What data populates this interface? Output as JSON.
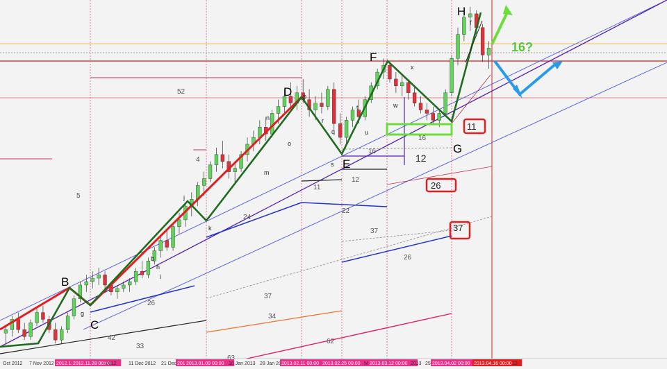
{
  "colors": {
    "background": "#f3f3f3",
    "bull_candle": "#5fd45a",
    "bear_candle": "#e0303a",
    "wave_red": "#e02020",
    "wave_green": "#1f6b1f",
    "channel_blue": "#4a55e0",
    "channel_purple": "#5522aa",
    "support_blue": "#2233cc",
    "highlight_box": "#e02020",
    "green_arrow": "#6ddc3c",
    "blue_arrow": "#2b9be8",
    "date_tag_bg": "#e8308a",
    "last_date_tag_bg": "#e02020"
  },
  "x_axis_labels": [
    {
      "text": "Oct 2012",
      "highlight": false
    },
    {
      "text": "7 Nov 2012",
      "highlight": false
    },
    {
      "text": "2012.11",
      "highlight": true
    },
    {
      "text": "2012.11.28 00:00",
      "highlight": true
    },
    {
      "text": "2012",
      "highlight": false
    },
    {
      "text": "11 Dec 2012",
      "highlight": false
    },
    {
      "text": "21 Dec",
      "highlight": false
    },
    {
      "text": "2013.01",
      "highlight": true
    },
    {
      "text": "2013.01.09 00:00",
      "highlight": true
    },
    {
      "text": "16 Jan 2013",
      "highlight": false
    },
    {
      "text": "28 Jan 20",
      "highlight": false
    },
    {
      "text": "2013.02.11 00:00",
      "highlight": true
    },
    {
      "text": "2013.02.25 00:00",
      "highlight": true
    },
    {
      "text": "M",
      "highlight": false
    },
    {
      "text": "2013.03.12 00:00",
      "highlight": true
    },
    {
      "text": "2013",
      "highlight": false
    },
    {
      "text": "25",
      "highlight": false
    },
    {
      "text": "2013.04.02 00:00",
      "highlight": true
    },
    {
      "text": "2013.04.16 00:00",
      "highlight": true
    },
    {
      "text": "13",
      "highlight": false
    }
  ],
  "wave_labels": [
    "B",
    "C",
    "D",
    "E",
    "F",
    "G",
    "H"
  ],
  "sub_labels": [
    "g",
    "b",
    "h",
    "i",
    "j",
    "k",
    "m",
    "n",
    "o",
    "p",
    "q",
    "r",
    "s",
    "t",
    "u",
    "w",
    "x",
    "f"
  ],
  "count_labels": [
    "52",
    "4",
    "5",
    "24",
    "26",
    "42",
    "33",
    "37",
    "34",
    "62",
    "63",
    "11",
    "12",
    "22",
    "16",
    "16",
    "12",
    "37",
    "26",
    "26",
    "37",
    "11"
  ],
  "boxed_labels": [
    "11",
    "26",
    "37"
  ],
  "projection_label": "16?",
  "chart_data": {
    "type": "candlestick",
    "title": "",
    "grid": true,
    "ohlc": [
      [
        0.05,
        0.07,
        0.02,
        0.06
      ],
      [
        0.06,
        0.1,
        0.04,
        0.09
      ],
      [
        0.09,
        0.11,
        0.05,
        0.06
      ],
      [
        0.06,
        0.08,
        0.03,
        0.04
      ],
      [
        0.04,
        0.09,
        0.03,
        0.08
      ],
      [
        0.08,
        0.12,
        0.07,
        0.11
      ],
      [
        0.11,
        0.13,
        0.08,
        0.09
      ],
      [
        0.09,
        0.1,
        0.05,
        0.06
      ],
      [
        0.06,
        0.08,
        0.02,
        0.03
      ],
      [
        0.03,
        0.07,
        0.02,
        0.06
      ],
      [
        0.06,
        0.11,
        0.05,
        0.1
      ],
      [
        0.1,
        0.16,
        0.09,
        0.15
      ],
      [
        0.15,
        0.2,
        0.14,
        0.19
      ],
      [
        0.19,
        0.22,
        0.17,
        0.2
      ],
      [
        0.2,
        0.23,
        0.18,
        0.21
      ],
      [
        0.21,
        0.24,
        0.19,
        0.22
      ],
      [
        0.22,
        0.23,
        0.18,
        0.19
      ],
      [
        0.19,
        0.2,
        0.16,
        0.17
      ],
      [
        0.17,
        0.19,
        0.15,
        0.18
      ],
      [
        0.18,
        0.2,
        0.17,
        0.19
      ],
      [
        0.19,
        0.21,
        0.17,
        0.2
      ],
      [
        0.2,
        0.24,
        0.19,
        0.23
      ],
      [
        0.23,
        0.26,
        0.21,
        0.22
      ],
      [
        0.22,
        0.27,
        0.21,
        0.26
      ],
      [
        0.26,
        0.3,
        0.25,
        0.29
      ],
      [
        0.29,
        0.33,
        0.27,
        0.32
      ],
      [
        0.32,
        0.35,
        0.29,
        0.3
      ],
      [
        0.3,
        0.37,
        0.29,
        0.36
      ],
      [
        0.36,
        0.4,
        0.34,
        0.38
      ],
      [
        0.38,
        0.43,
        0.36,
        0.42
      ],
      [
        0.42,
        0.46,
        0.39,
        0.44
      ],
      [
        0.44,
        0.49,
        0.42,
        0.48
      ],
      [
        0.48,
        0.52,
        0.45,
        0.5
      ],
      [
        0.5,
        0.55,
        0.49,
        0.54
      ],
      [
        0.54,
        0.59,
        0.52,
        0.57
      ],
      [
        0.57,
        0.61,
        0.53,
        0.55
      ],
      [
        0.55,
        0.57,
        0.5,
        0.52
      ],
      [
        0.52,
        0.55,
        0.49,
        0.53
      ],
      [
        0.53,
        0.58,
        0.52,
        0.57
      ],
      [
        0.57,
        0.62,
        0.55,
        0.6
      ],
      [
        0.6,
        0.64,
        0.58,
        0.62
      ],
      [
        0.62,
        0.67,
        0.6,
        0.65
      ],
      [
        0.65,
        0.68,
        0.61,
        0.63
      ],
      [
        0.63,
        0.7,
        0.62,
        0.69
      ],
      [
        0.69,
        0.73,
        0.66,
        0.71
      ],
      [
        0.71,
        0.76,
        0.69,
        0.74
      ],
      [
        0.74,
        0.78,
        0.71,
        0.72
      ],
      [
        0.72,
        0.77,
        0.7,
        0.75
      ],
      [
        0.75,
        0.79,
        0.72,
        0.73
      ],
      [
        0.73,
        0.76,
        0.68,
        0.7
      ],
      [
        0.7,
        0.74,
        0.67,
        0.72
      ],
      [
        0.72,
        0.75,
        0.69,
        0.71
      ],
      [
        0.71,
        0.77,
        0.7,
        0.76
      ],
      [
        0.76,
        0.78,
        0.64,
        0.66
      ],
      [
        0.66,
        0.69,
        0.6,
        0.62
      ],
      [
        0.62,
        0.68,
        0.6,
        0.67
      ],
      [
        0.67,
        0.71,
        0.65,
        0.7
      ],
      [
        0.7,
        0.73,
        0.66,
        0.68
      ],
      [
        0.68,
        0.74,
        0.67,
        0.73
      ],
      [
        0.73,
        0.78,
        0.72,
        0.77
      ],
      [
        0.77,
        0.82,
        0.76,
        0.81
      ],
      [
        0.81,
        0.85,
        0.79,
        0.83
      ],
      [
        0.83,
        0.84,
        0.78,
        0.79
      ],
      [
        0.79,
        0.81,
        0.75,
        0.77
      ],
      [
        0.77,
        0.8,
        0.74,
        0.78
      ],
      [
        0.78,
        0.79,
        0.73,
        0.75
      ],
      [
        0.75,
        0.77,
        0.71,
        0.72
      ],
      [
        0.72,
        0.74,
        0.69,
        0.7
      ],
      [
        0.7,
        0.72,
        0.67,
        0.69
      ],
      [
        0.69,
        0.71,
        0.66,
        0.67
      ],
      [
        0.67,
        0.7,
        0.65,
        0.69
      ],
      [
        0.69,
        0.76,
        0.68,
        0.75
      ],
      [
        0.75,
        0.86,
        0.74,
        0.85
      ],
      [
        0.85,
        0.94,
        0.83,
        0.92
      ],
      [
        0.92,
        0.99,
        0.9,
        0.97
      ],
      [
        0.97,
        1.0,
        0.93,
        0.98
      ],
      [
        0.98,
        0.99,
        0.92,
        0.94
      ],
      [
        0.94,
        0.95,
        0.84,
        0.86
      ],
      [
        0.86,
        0.9,
        0.82,
        0.88
      ]
    ]
  }
}
